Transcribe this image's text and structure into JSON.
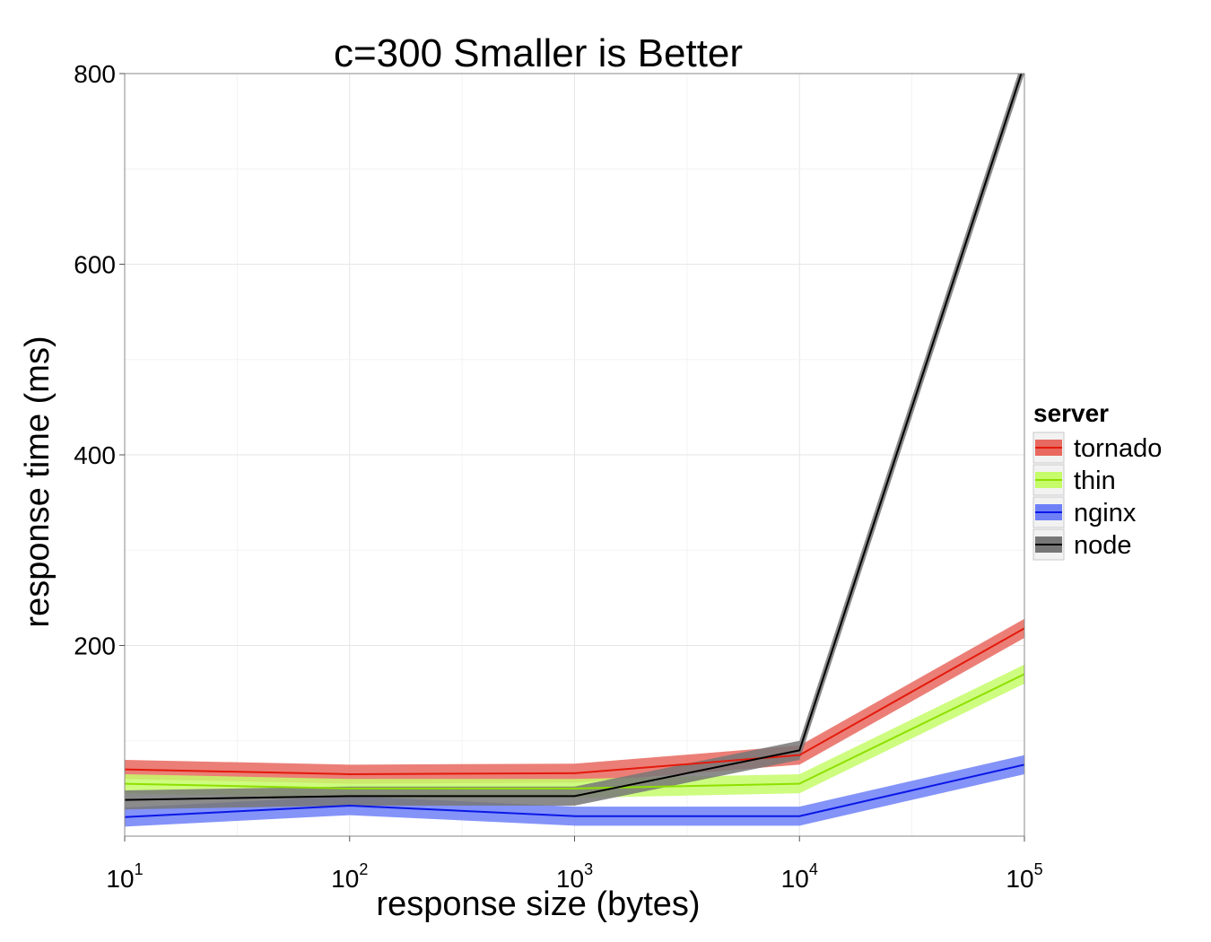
{
  "chart_data": {
    "type": "line",
    "title": "c=300 Smaller is Better",
    "xlabel": "response size (bytes)",
    "ylabel": "response time (ms)",
    "x_scale": "log10",
    "x": [
      10,
      100,
      1000,
      10000,
      100000
    ],
    "x_tick_labels": [
      {
        "base": "10",
        "exp": "1"
      },
      {
        "base": "10",
        "exp": "2"
      },
      {
        "base": "10",
        "exp": "3"
      },
      {
        "base": "10",
        "exp": "4"
      },
      {
        "base": "10",
        "exp": "5"
      }
    ],
    "xlim": [
      10,
      100000
    ],
    "ylim": [
      0,
      800
    ],
    "y_ticks": [
      200,
      400,
      600,
      800
    ],
    "y_tick_labels": [
      "200",
      "400",
      "600",
      "800"
    ],
    "grid": true,
    "legend": {
      "title": "server",
      "placement": "right"
    },
    "series": [
      {
        "name": "tornado",
        "color": "#e31a0c",
        "band_color": "#e8695f",
        "values": [
          70,
          65,
          66,
          85,
          218
        ],
        "band_halfwidth": 10
      },
      {
        "name": "thin",
        "color": "#8ee000",
        "band_color": "#c6fb6a",
        "values": [
          55,
          50,
          50,
          55,
          170
        ],
        "band_halfwidth": 10
      },
      {
        "name": "nginx",
        "color": "#0a18e6",
        "band_color": "#6f80f7",
        "values": [
          20,
          32,
          21,
          21,
          75
        ],
        "band_halfwidth": 10
      },
      {
        "name": "node",
        "color": "#000000",
        "band_color": "#777777",
        "values": [
          38,
          42,
          42,
          90,
          810
        ],
        "band_halfwidth": 10
      }
    ]
  }
}
